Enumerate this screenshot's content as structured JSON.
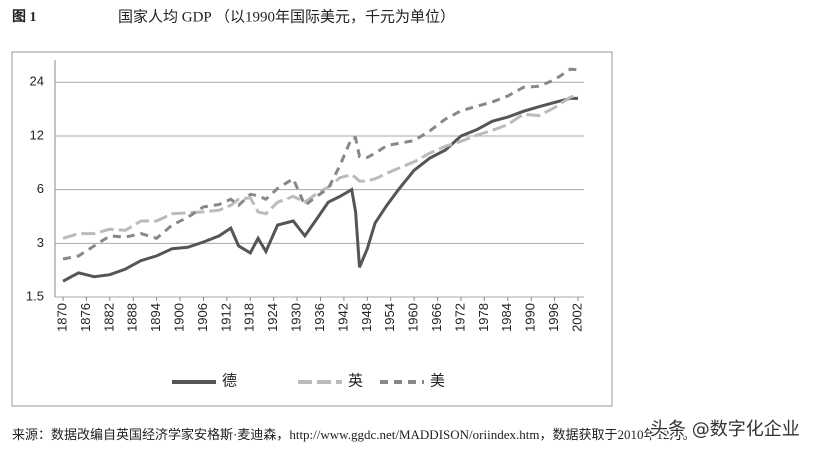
{
  "chart_data": {
    "type": "line",
    "figure_label": "图 1",
    "title": "国家人均 GDP （以1990年国际美元，千元为单位）",
    "x": [
      1870,
      1874,
      1878,
      1882,
      1886,
      1890,
      1894,
      1898,
      1902,
      1906,
      1910,
      1913,
      1915,
      1918,
      1920,
      1922,
      1925,
      1929,
      1932,
      1935,
      1938,
      1941,
      1944,
      1945,
      1946,
      1948,
      1950,
      1953,
      1956,
      1960,
      1964,
      1968,
      1972,
      1976,
      1980,
      1984,
      1988,
      1992,
      1996,
      2000,
      2002
    ],
    "series": [
      {
        "name": "德",
        "color": "#555555",
        "line_style": "solid",
        "values": [
          1.84,
          2.05,
          1.95,
          2.0,
          2.15,
          2.4,
          2.55,
          2.8,
          2.85,
          3.05,
          3.3,
          3.65,
          2.9,
          2.65,
          3.2,
          2.7,
          3.8,
          4.0,
          3.3,
          4.1,
          5.1,
          5.5,
          6.0,
          4.5,
          2.2,
          2.8,
          3.9,
          4.9,
          6.0,
          7.7,
          9.0,
          10.0,
          12.0,
          13.0,
          14.5,
          15.3,
          16.5,
          17.5,
          18.5,
          19.5,
          19.5
        ]
      },
      {
        "name": "英",
        "color": "#bbbbbb",
        "line_style": "long-dash",
        "values": [
          3.2,
          3.4,
          3.4,
          3.6,
          3.55,
          4.0,
          4.0,
          4.4,
          4.45,
          4.5,
          4.6,
          4.9,
          5.3,
          5.4,
          4.5,
          4.4,
          5.1,
          5.5,
          5.1,
          5.7,
          6.2,
          7.0,
          7.3,
          7.0,
          6.7,
          6.7,
          6.9,
          7.4,
          7.9,
          8.6,
          9.6,
          10.5,
          11.2,
          12.1,
          12.9,
          13.9,
          15.9,
          15.6,
          17.3,
          19.8,
          20.5
        ]
      },
      {
        "name": "美",
        "color": "#888888",
        "line_style": "dash",
        "values": [
          2.45,
          2.55,
          2.9,
          3.3,
          3.25,
          3.4,
          3.2,
          3.8,
          4.2,
          4.8,
          4.95,
          5.3,
          4.9,
          5.65,
          5.55,
          5.3,
          6.1,
          6.9,
          4.9,
          5.5,
          6.1,
          8.2,
          11.7,
          11.7,
          9.2,
          9.1,
          9.6,
          10.6,
          10.9,
          11.3,
          12.8,
          14.9,
          16.6,
          17.6,
          18.6,
          20.1,
          22.5,
          22.8,
          24.8,
          28.4,
          28.2
        ]
      }
    ],
    "xlim": [
      1870,
      2002
    ],
    "xticks": [
      1870,
      1876,
      1882,
      1888,
      1894,
      1900,
      1906,
      1912,
      1918,
      1924,
      1930,
      1936,
      1942,
      1948,
      1954,
      1960,
      1966,
      1972,
      1978,
      1984,
      1990,
      1996,
      2002
    ],
    "ylim": [
      1.5,
      32
    ],
    "yticks": [
      1.5,
      3,
      6,
      12,
      24
    ],
    "log_scale": true,
    "grid": true,
    "legend": "bottom"
  },
  "source": "来源：数据改编自英国经济学家安格斯·麦迪森，http://www.ggdc.net/MADDISON/oriindex.htm，数据获取于2010年12月。",
  "watermark": "头条 @数字化企业"
}
